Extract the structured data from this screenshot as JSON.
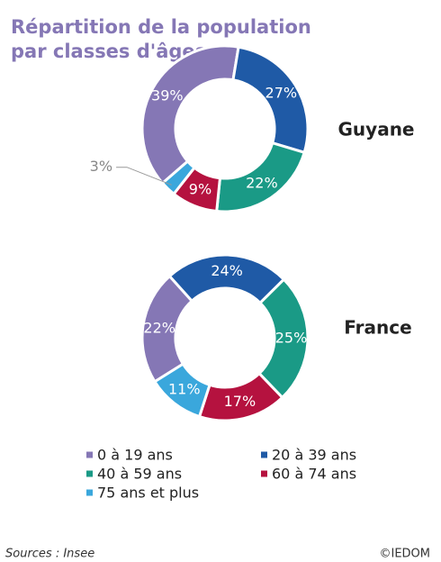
{
  "title": [
    "Répartition de la population",
    "par classes d'âges"
  ],
  "source": "Sources : Insee",
  "credit": "©IEDOM",
  "chart_data": [
    {
      "type": "pie",
      "title": "Guyane",
      "categories": [
        "0 à 19 ans",
        "20 à 39 ans",
        "40 à 59 ans",
        "60 à 74 ans",
        "75 ans et plus"
      ],
      "values": [
        39,
        27,
        22,
        9,
        3
      ],
      "value_labels": [
        "39%",
        "27%",
        "22%",
        "9%",
        "3%"
      ],
      "colors": [
        "#8577b5",
        "#1f5aa6",
        "#1a9a86",
        "#b5123f",
        "#3aa7dc"
      ]
    },
    {
      "type": "pie",
      "title": "France",
      "categories": [
        "0 à 19 ans",
        "20 à 39 ans",
        "40 à 59 ans",
        "60 à 74 ans",
        "75 ans et plus"
      ],
      "values": [
        22,
        24,
        25,
        17,
        11
      ],
      "value_labels": [
        "22%",
        "24%",
        "25%",
        "17%",
        "11%"
      ],
      "colors": [
        "#8577b5",
        "#1f5aa6",
        "#1a9a86",
        "#b5123f",
        "#3aa7dc"
      ]
    }
  ]
}
